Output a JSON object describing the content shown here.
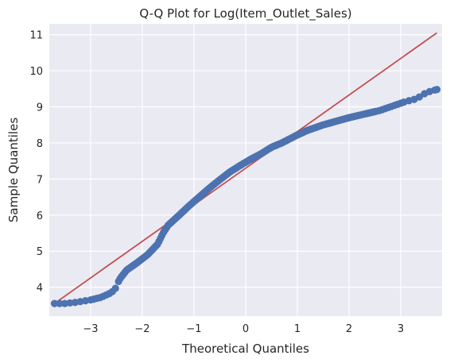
{
  "chart_data": {
    "type": "scatter",
    "title": "Q-Q Plot for Log(Item_Outlet_Sales)",
    "xlabel": "Theoretical Quantiles",
    "ylabel": "Sample Quantiles",
    "xlim": [
      -3.8,
      3.8
    ],
    "ylim": [
      3.2,
      11.3
    ],
    "xticks": [
      -3,
      -2,
      -1,
      0,
      1,
      2,
      3
    ],
    "yticks": [
      4,
      5,
      6,
      7,
      8,
      9,
      10,
      11
    ],
    "grid": true,
    "background_color": "#eaeaf2",
    "marker_color": "#4c72b0",
    "line_color": "#c44e52",
    "reference_line": {
      "x": [
        -3.7,
        3.7
      ],
      "y": [
        3.55,
        11.05
      ]
    },
    "quantile_curve": [
      [
        -3.7,
        3.55
      ],
      [
        -3.5,
        3.55
      ],
      [
        -3.3,
        3.58
      ],
      [
        -3.0,
        3.65
      ],
      [
        -2.8,
        3.72
      ],
      [
        -2.6,
        3.85
      ],
      [
        -2.5,
        4.0
      ],
      [
        -2.45,
        4.2
      ],
      [
        -2.4,
        4.3
      ],
      [
        -2.3,
        4.48
      ],
      [
        -2.1,
        4.68
      ],
      [
        -1.9,
        4.9
      ],
      [
        -1.7,
        5.2
      ],
      [
        -1.6,
        5.5
      ],
      [
        -1.5,
        5.72
      ],
      [
        -1.3,
        5.98
      ],
      [
        -1.1,
        6.25
      ],
      [
        -0.9,
        6.5
      ],
      [
        -0.7,
        6.75
      ],
      [
        -0.5,
        6.98
      ],
      [
        -0.3,
        7.2
      ],
      [
        -0.1,
        7.38
      ],
      [
        0.1,
        7.55
      ],
      [
        0.3,
        7.7
      ],
      [
        0.5,
        7.88
      ],
      [
        0.7,
        8.0
      ],
      [
        1.0,
        8.22
      ],
      [
        1.2,
        8.35
      ],
      [
        1.5,
        8.5
      ],
      [
        1.8,
        8.62
      ],
      [
        2.0,
        8.7
      ],
      [
        2.3,
        8.8
      ],
      [
        2.6,
        8.9
      ],
      [
        2.9,
        9.05
      ],
      [
        3.1,
        9.15
      ],
      [
        3.3,
        9.22
      ],
      [
        3.5,
        9.4
      ],
      [
        3.7,
        9.48
      ]
    ]
  }
}
